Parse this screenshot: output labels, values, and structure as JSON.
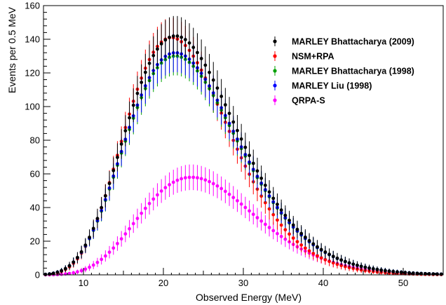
{
  "chart_data": {
    "type": "scatter",
    "xlabel": "Observed Energy (MeV)",
    "ylabel": "Events per 0.5 MeV",
    "xlim": [
      5,
      55
    ],
    "ylim": [
      0,
      160
    ],
    "x_ticks": [
      10,
      20,
      30,
      40,
      50
    ],
    "y_ticks": [
      0,
      20,
      40,
      60,
      80,
      100,
      120,
      140,
      160
    ],
    "x_tick_labels": [
      "10",
      "20",
      "30",
      "40",
      "50"
    ],
    "y_tick_labels": [
      "0",
      "20",
      "40",
      "60",
      "80",
      "100",
      "120",
      "140",
      "160"
    ],
    "bin_width": 0.5,
    "grid": false,
    "legend_position": "top-right",
    "error_bars": "statistical (sqrt N)",
    "series": [
      {
        "name": "MARLEY Bhattacharya (2009)",
        "color": "#000000",
        "peak_x": 21.5,
        "peak_y": 142,
        "tail_at_55": 6
      },
      {
        "name": "NSM+RPA",
        "color": "#ff0000",
        "peak_x": 21.0,
        "peak_y": 141,
        "tail_at_55": 4
      },
      {
        "name": "MARLEY Bhattacharya (1998)",
        "color": "#00a000",
        "peak_x": 21.5,
        "peak_y": 130,
        "tail_at_55": 6
      },
      {
        "name": "MARLEY Liu (1998)",
        "color": "#0000ff",
        "peak_x": 21.5,
        "peak_y": 132,
        "tail_at_55": 6
      },
      {
        "name": "QRPA-S",
        "color": "#ff00ff",
        "peak_x": 23.5,
        "peak_y": 58,
        "tail_at_55": 3
      }
    ]
  }
}
